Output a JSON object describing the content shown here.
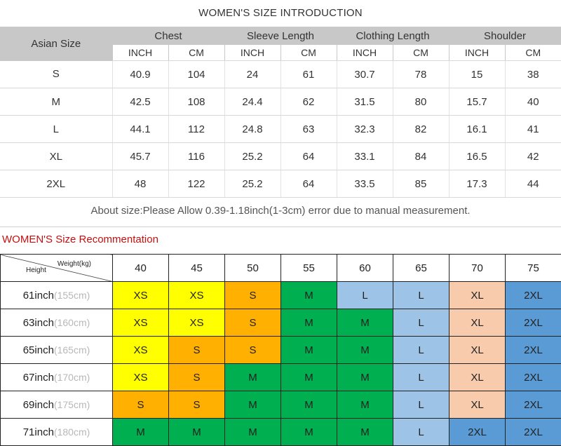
{
  "intro_title": "WOMEN'S SIZE INTRODUCTION",
  "size_table": {
    "label_header": "Asian Size",
    "groups": [
      "Chest",
      "Sleeve Length",
      "Clothing Length",
      "Shoulder"
    ],
    "subheaders": [
      "INCH",
      "CM",
      "INCH",
      "CM",
      "INCH",
      "CM",
      "INCH",
      "CM"
    ],
    "rows": [
      {
        "size": "S",
        "values": [
          "40.9",
          "104",
          "24",
          "61",
          "30.7",
          "78",
          "15",
          "38"
        ]
      },
      {
        "size": "M",
        "values": [
          "42.5",
          "108",
          "24.4",
          "62",
          "31.5",
          "80",
          "15.7",
          "40"
        ]
      },
      {
        "size": "L",
        "values": [
          "44.1",
          "112",
          "24.8",
          "63",
          "32.3",
          "82",
          "16.1",
          "41"
        ]
      },
      {
        "size": "XL",
        "values": [
          "45.7",
          "116",
          "25.2",
          "64",
          "33.1",
          "84",
          "16.5",
          "42"
        ]
      },
      {
        "size": "2XL",
        "values": [
          "48",
          "122",
          "25.2",
          "64",
          "33.5",
          "85",
          "17.3",
          "44"
        ]
      }
    ]
  },
  "note": "About size:Please Allow 0.39-1.18inch(1-3cm) error due to manual measurement.",
  "rec_title": "WOMEN'S Size Recommentation",
  "rec_table": {
    "weight_label": "Weight(kg)",
    "height_label": "Height",
    "weights": [
      "40",
      "45",
      "50",
      "55",
      "60",
      "65",
      "70",
      "75"
    ],
    "rows": [
      {
        "inch": "61inch",
        "cm": "(155cm)",
        "sizes": [
          "XS",
          "XS",
          "S",
          "M",
          "L",
          "L",
          "XL",
          "2XL"
        ]
      },
      {
        "inch": "63inch",
        "cm": "(160cm)",
        "sizes": [
          "XS",
          "XS",
          "S",
          "M",
          "M",
          "L",
          "XL",
          "2XL"
        ]
      },
      {
        "inch": "65inch",
        "cm": "(165cm)",
        "sizes": [
          "XS",
          "S",
          "S",
          "M",
          "M",
          "L",
          "XL",
          "2XL"
        ]
      },
      {
        "inch": "67inch",
        "cm": "(170cm)",
        "sizes": [
          "XS",
          "S",
          "M",
          "M",
          "M",
          "L",
          "XL",
          "2XL"
        ]
      },
      {
        "inch": "69inch",
        "cm": "(175cm)",
        "sizes": [
          "S",
          "S",
          "M",
          "M",
          "M",
          "L",
          "XL",
          "2XL"
        ]
      },
      {
        "inch": "71inch",
        "cm": "(180cm)",
        "sizes": [
          "M",
          "M",
          "M",
          "M",
          "M",
          "L",
          "2XL",
          "2XL"
        ]
      }
    ],
    "size_colors": {
      "XS": "#ffff00",
      "S": "#ffb000",
      "M": "#00b050",
      "L": "#9dc3e6",
      "XL": "#f8cbad",
      "2XL": "#5b9bd5"
    },
    "row_special": {
      "61inch_L_col60": "#9dc3e6"
    }
  }
}
